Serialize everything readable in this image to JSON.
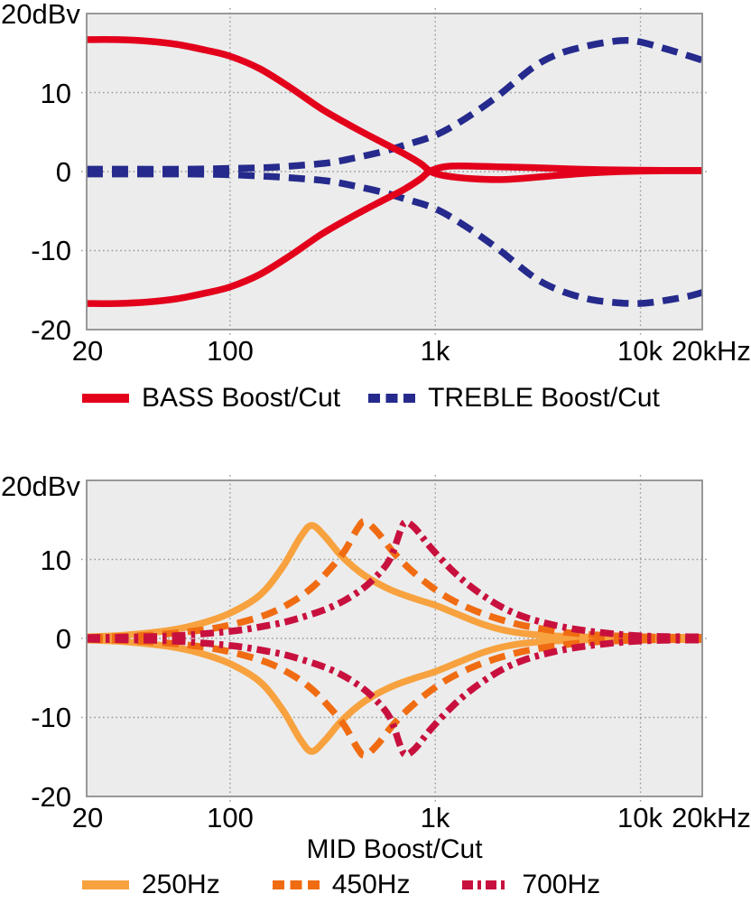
{
  "page": {
    "background": "#ffffff",
    "text_color": "#000000"
  },
  "chart_data": [
    {
      "type": "line",
      "title": "",
      "y_unit_label": "20dBv",
      "xlabel": "",
      "x_scale": "log",
      "xlim": [
        20,
        20000
      ],
      "ylim": [
        -20,
        20
      ],
      "grid": {
        "on": true,
        "x_values": [
          100,
          1000,
          10000
        ],
        "y_values": [
          10,
          0,
          -10
        ],
        "color": "#9a9a9a"
      },
      "plot_bg": "#ececec",
      "frame_color": "#8e8e8e",
      "x_ticks": [
        {
          "freq": 20,
          "label": "20"
        },
        {
          "freq": 100,
          "label": "100"
        },
        {
          "freq": 1000,
          "label": "1k"
        },
        {
          "freq": 10000,
          "label": "10k"
        },
        {
          "freq": 20000,
          "label": "20kHz"
        }
      ],
      "y_ticks": [
        {
          "value": 10,
          "label": "10"
        },
        {
          "value": 0,
          "label": "0"
        },
        {
          "value": -10,
          "label": "-10"
        },
        {
          "value": -20,
          "label": "-20"
        }
      ],
      "legend": [
        {
          "label": "BASS Boost/Cut",
          "color": "#e3001b",
          "style": "solid"
        },
        {
          "label": "TREBLE Boost/Cut",
          "color": "#252a8c",
          "style": "dashed"
        }
      ],
      "legend_position": "bottom-left",
      "series": [
        {
          "name": "TREBLE Boost",
          "color": "#252a8c",
          "style": "dashed",
          "points": [
            [
              20,
              0.3
            ],
            [
              60,
              0.3
            ],
            [
              100,
              0.4
            ],
            [
              150,
              0.5
            ],
            [
              200,
              0.7
            ],
            [
              300,
              1.1
            ],
            [
              400,
              1.7
            ],
            [
              550,
              2.5
            ],
            [
              700,
              3.3
            ],
            [
              1000,
              4.6
            ],
            [
              1400,
              6.7
            ],
            [
              2000,
              9.5
            ],
            [
              3000,
              13.2
            ],
            [
              4000,
              14.9
            ],
            [
              5500,
              15.9
            ],
            [
              7000,
              16.4
            ],
            [
              8500,
              16.6
            ],
            [
              10000,
              16.4
            ],
            [
              13000,
              15.6
            ],
            [
              16000,
              14.9
            ],
            [
              20000,
              14.1
            ]
          ]
        },
        {
          "name": "TREBLE Cut",
          "color": "#252a8c",
          "style": "dashed",
          "points": [
            [
              20,
              -0.3
            ],
            [
              60,
              -0.3
            ],
            [
              100,
              -0.4
            ],
            [
              150,
              -0.6
            ],
            [
              200,
              -0.8
            ],
            [
              300,
              -1.2
            ],
            [
              400,
              -1.8
            ],
            [
              550,
              -2.6
            ],
            [
              700,
              -3.4
            ],
            [
              1000,
              -4.7
            ],
            [
              1400,
              -6.9
            ],
            [
              2000,
              -9.7
            ],
            [
              3000,
              -13.3
            ],
            [
              4000,
              -15.0
            ],
            [
              5500,
              -16.1
            ],
            [
              7000,
              -16.5
            ],
            [
              9000,
              -16.7
            ],
            [
              11000,
              -16.6
            ],
            [
              14000,
              -16.2
            ],
            [
              17000,
              -15.8
            ],
            [
              20000,
              -15.3
            ]
          ]
        },
        {
          "name": "BASS Boost",
          "color": "#e3001b",
          "style": "solid",
          "points": [
            [
              20,
              16.7
            ],
            [
              28,
              16.7
            ],
            [
              40,
              16.5
            ],
            [
              55,
              16.1
            ],
            [
              75,
              15.4
            ],
            [
              100,
              14.6
            ],
            [
              140,
              13.0
            ],
            [
              200,
              10.5
            ],
            [
              280,
              7.9
            ],
            [
              400,
              5.6
            ],
            [
              550,
              3.7
            ],
            [
              700,
              2.3
            ],
            [
              850,
              1.0
            ],
            [
              950,
              0.0
            ],
            [
              1100,
              -0.5
            ],
            [
              1500,
              -0.9
            ],
            [
              2200,
              -1.0
            ],
            [
              3500,
              -0.6
            ],
            [
              5500,
              -0.2
            ],
            [
              8000,
              0.0
            ],
            [
              13000,
              0.1
            ],
            [
              20000,
              0.1
            ]
          ]
        },
        {
          "name": "BASS Cut",
          "color": "#e3001b",
          "style": "solid",
          "points": [
            [
              20,
              -16.7
            ],
            [
              28,
              -16.7
            ],
            [
              40,
              -16.5
            ],
            [
              55,
              -16.1
            ],
            [
              75,
              -15.4
            ],
            [
              100,
              -14.6
            ],
            [
              140,
              -13.0
            ],
            [
              200,
              -10.5
            ],
            [
              280,
              -7.9
            ],
            [
              400,
              -5.6
            ],
            [
              550,
              -3.7
            ],
            [
              700,
              -2.3
            ],
            [
              850,
              -0.9
            ],
            [
              950,
              0.1
            ],
            [
              1200,
              0.7
            ],
            [
              2000,
              0.6
            ],
            [
              3000,
              0.5
            ],
            [
              5000,
              0.3
            ],
            [
              8000,
              0.2
            ],
            [
              13000,
              0.15
            ],
            [
              20000,
              0.15
            ]
          ]
        }
      ]
    },
    {
      "type": "line",
      "title": "",
      "y_unit_label": "20dBv",
      "xlabel": "MID Boost/Cut",
      "x_scale": "log",
      "xlim": [
        20,
        20000
      ],
      "ylim": [
        -20,
        20
      ],
      "grid": {
        "on": true,
        "x_values": [
          100,
          1000,
          10000
        ],
        "y_values": [
          10,
          0,
          -10
        ],
        "color": "#9a9a9a"
      },
      "plot_bg": "#ececec",
      "frame_color": "#8e8e8e",
      "x_ticks": [
        {
          "freq": 20,
          "label": "20"
        },
        {
          "freq": 100,
          "label": "100"
        },
        {
          "freq": 1000,
          "label": "1k"
        },
        {
          "freq": 10000,
          "label": "10k"
        },
        {
          "freq": 20000,
          "label": "20kHz"
        }
      ],
      "y_ticks": [
        {
          "value": 10,
          "label": "10"
        },
        {
          "value": 0,
          "label": "0"
        },
        {
          "value": -10,
          "label": "-10"
        },
        {
          "value": -20,
          "label": "-20"
        }
      ],
      "legend": [
        {
          "label": "250Hz",
          "color": "#f7a23f",
          "style": "solid"
        },
        {
          "label": "450Hz",
          "color": "#f06c12",
          "style": "dashed"
        },
        {
          "label": "700Hz",
          "color": "#c8103e",
          "style": "dashdot"
        }
      ],
      "legend_position": "bottom-left",
      "series": [
        {
          "name": "250Hz Boost",
          "color": "#f7a23f",
          "style": "solid",
          "points": [
            [
              20,
              0.2
            ],
            [
              30,
              0.4
            ],
            [
              50,
              1.0
            ],
            [
              70,
              1.8
            ],
            [
              100,
              3.2
            ],
            [
              140,
              5.5
            ],
            [
              180,
              9.0
            ],
            [
              220,
              12.8
            ],
            [
              250,
              14.3
            ],
            [
              290,
              12.9
            ],
            [
              350,
              10.4
            ],
            [
              450,
              8.0
            ],
            [
              600,
              6.2
            ],
            [
              800,
              5.0
            ],
            [
              1000,
              4.2
            ],
            [
              1300,
              3.0
            ],
            [
              1700,
              1.8
            ],
            [
              2200,
              1.0
            ],
            [
              3000,
              0.5
            ],
            [
              5000,
              0.2
            ],
            [
              10000,
              0.15
            ],
            [
              20000,
              0.15
            ]
          ]
        },
        {
          "name": "250Hz Cut",
          "color": "#f7a23f",
          "style": "solid",
          "points": [
            [
              20,
              -0.2
            ],
            [
              30,
              -0.4
            ],
            [
              50,
              -1.0
            ],
            [
              70,
              -1.8
            ],
            [
              100,
              -3.2
            ],
            [
              140,
              -5.5
            ],
            [
              180,
              -9.0
            ],
            [
              220,
              -12.8
            ],
            [
              250,
              -14.3
            ],
            [
              290,
              -12.9
            ],
            [
              350,
              -10.4
            ],
            [
              450,
              -8.0
            ],
            [
              600,
              -6.2
            ],
            [
              800,
              -5.0
            ],
            [
              1000,
              -4.2
            ],
            [
              1300,
              -3.0
            ],
            [
              1700,
              -1.8
            ],
            [
              2200,
              -1.0
            ],
            [
              3000,
              -0.5
            ],
            [
              5000,
              -0.2
            ],
            [
              10000,
              -0.15
            ],
            [
              20000,
              -0.15
            ]
          ]
        },
        {
          "name": "450Hz Boost",
          "color": "#f06c12",
          "style": "dashed",
          "points": [
            [
              20,
              0.1
            ],
            [
              40,
              0.4
            ],
            [
              70,
              1.0
            ],
            [
              100,
              1.7
            ],
            [
              150,
              3.0
            ],
            [
              200,
              4.6
            ],
            [
              250,
              6.4
            ],
            [
              300,
              8.5
            ],
            [
              360,
              11.0
            ],
            [
              420,
              14.0
            ],
            [
              455,
              14.8
            ],
            [
              520,
              13.5
            ],
            [
              620,
              11.0
            ],
            [
              750,
              8.8
            ],
            [
              950,
              6.6
            ],
            [
              1200,
              4.9
            ],
            [
              1600,
              3.4
            ],
            [
              2200,
              2.2
            ],
            [
              3000,
              1.4
            ],
            [
              5000,
              0.6
            ],
            [
              10000,
              0.2
            ],
            [
              20000,
              0.15
            ]
          ]
        },
        {
          "name": "450Hz Cut",
          "color": "#f06c12",
          "style": "dashed",
          "points": [
            [
              20,
              -0.1
            ],
            [
              40,
              -0.4
            ],
            [
              70,
              -1.0
            ],
            [
              100,
              -1.7
            ],
            [
              150,
              -3.0
            ],
            [
              200,
              -4.6
            ],
            [
              250,
              -6.4
            ],
            [
              300,
              -8.5
            ],
            [
              360,
              -11.0
            ],
            [
              420,
              -14.0
            ],
            [
              455,
              -14.8
            ],
            [
              520,
              -13.5
            ],
            [
              620,
              -11.0
            ],
            [
              750,
              -8.8
            ],
            [
              950,
              -6.6
            ],
            [
              1200,
              -4.9
            ],
            [
              1600,
              -3.4
            ],
            [
              2200,
              -2.2
            ],
            [
              3000,
              -1.4
            ],
            [
              5000,
              -0.6
            ],
            [
              10000,
              -0.2
            ],
            [
              20000,
              -0.15
            ]
          ]
        },
        {
          "name": "700Hz Boost",
          "color": "#c8103e",
          "style": "dashdot",
          "points": [
            [
              20,
              0.1
            ],
            [
              50,
              0.3
            ],
            [
              100,
              0.9
            ],
            [
              150,
              1.6
            ],
            [
              200,
              2.3
            ],
            [
              300,
              3.8
            ],
            [
              400,
              5.5
            ],
            [
              500,
              7.5
            ],
            [
              600,
              10.0
            ],
            [
              680,
              13.8
            ],
            [
              720,
              14.7
            ],
            [
              800,
              13.9
            ],
            [
              950,
              11.5
            ],
            [
              1200,
              8.7
            ],
            [
              1500,
              6.5
            ],
            [
              2000,
              4.3
            ],
            [
              2600,
              2.9
            ],
            [
              3500,
              1.9
            ],
            [
              5000,
              1.1
            ],
            [
              8000,
              0.5
            ],
            [
              12000,
              0.25
            ],
            [
              20000,
              0.2
            ]
          ]
        },
        {
          "name": "700Hz Cut",
          "color": "#c8103e",
          "style": "dashdot",
          "points": [
            [
              20,
              -0.1
            ],
            [
              50,
              -0.3
            ],
            [
              100,
              -0.9
            ],
            [
              150,
              -1.6
            ],
            [
              200,
              -2.3
            ],
            [
              300,
              -3.8
            ],
            [
              400,
              -5.5
            ],
            [
              500,
              -7.5
            ],
            [
              600,
              -10.0
            ],
            [
              680,
              -13.8
            ],
            [
              720,
              -14.7
            ],
            [
              800,
              -13.9
            ],
            [
              950,
              -11.5
            ],
            [
              1200,
              -8.7
            ],
            [
              1500,
              -6.5
            ],
            [
              2000,
              -4.3
            ],
            [
              2600,
              -2.9
            ],
            [
              3500,
              -1.9
            ],
            [
              5000,
              -1.1
            ],
            [
              8000,
              -0.5
            ],
            [
              12000,
              -0.25
            ],
            [
              20000,
              -0.2
            ]
          ]
        }
      ]
    }
  ]
}
